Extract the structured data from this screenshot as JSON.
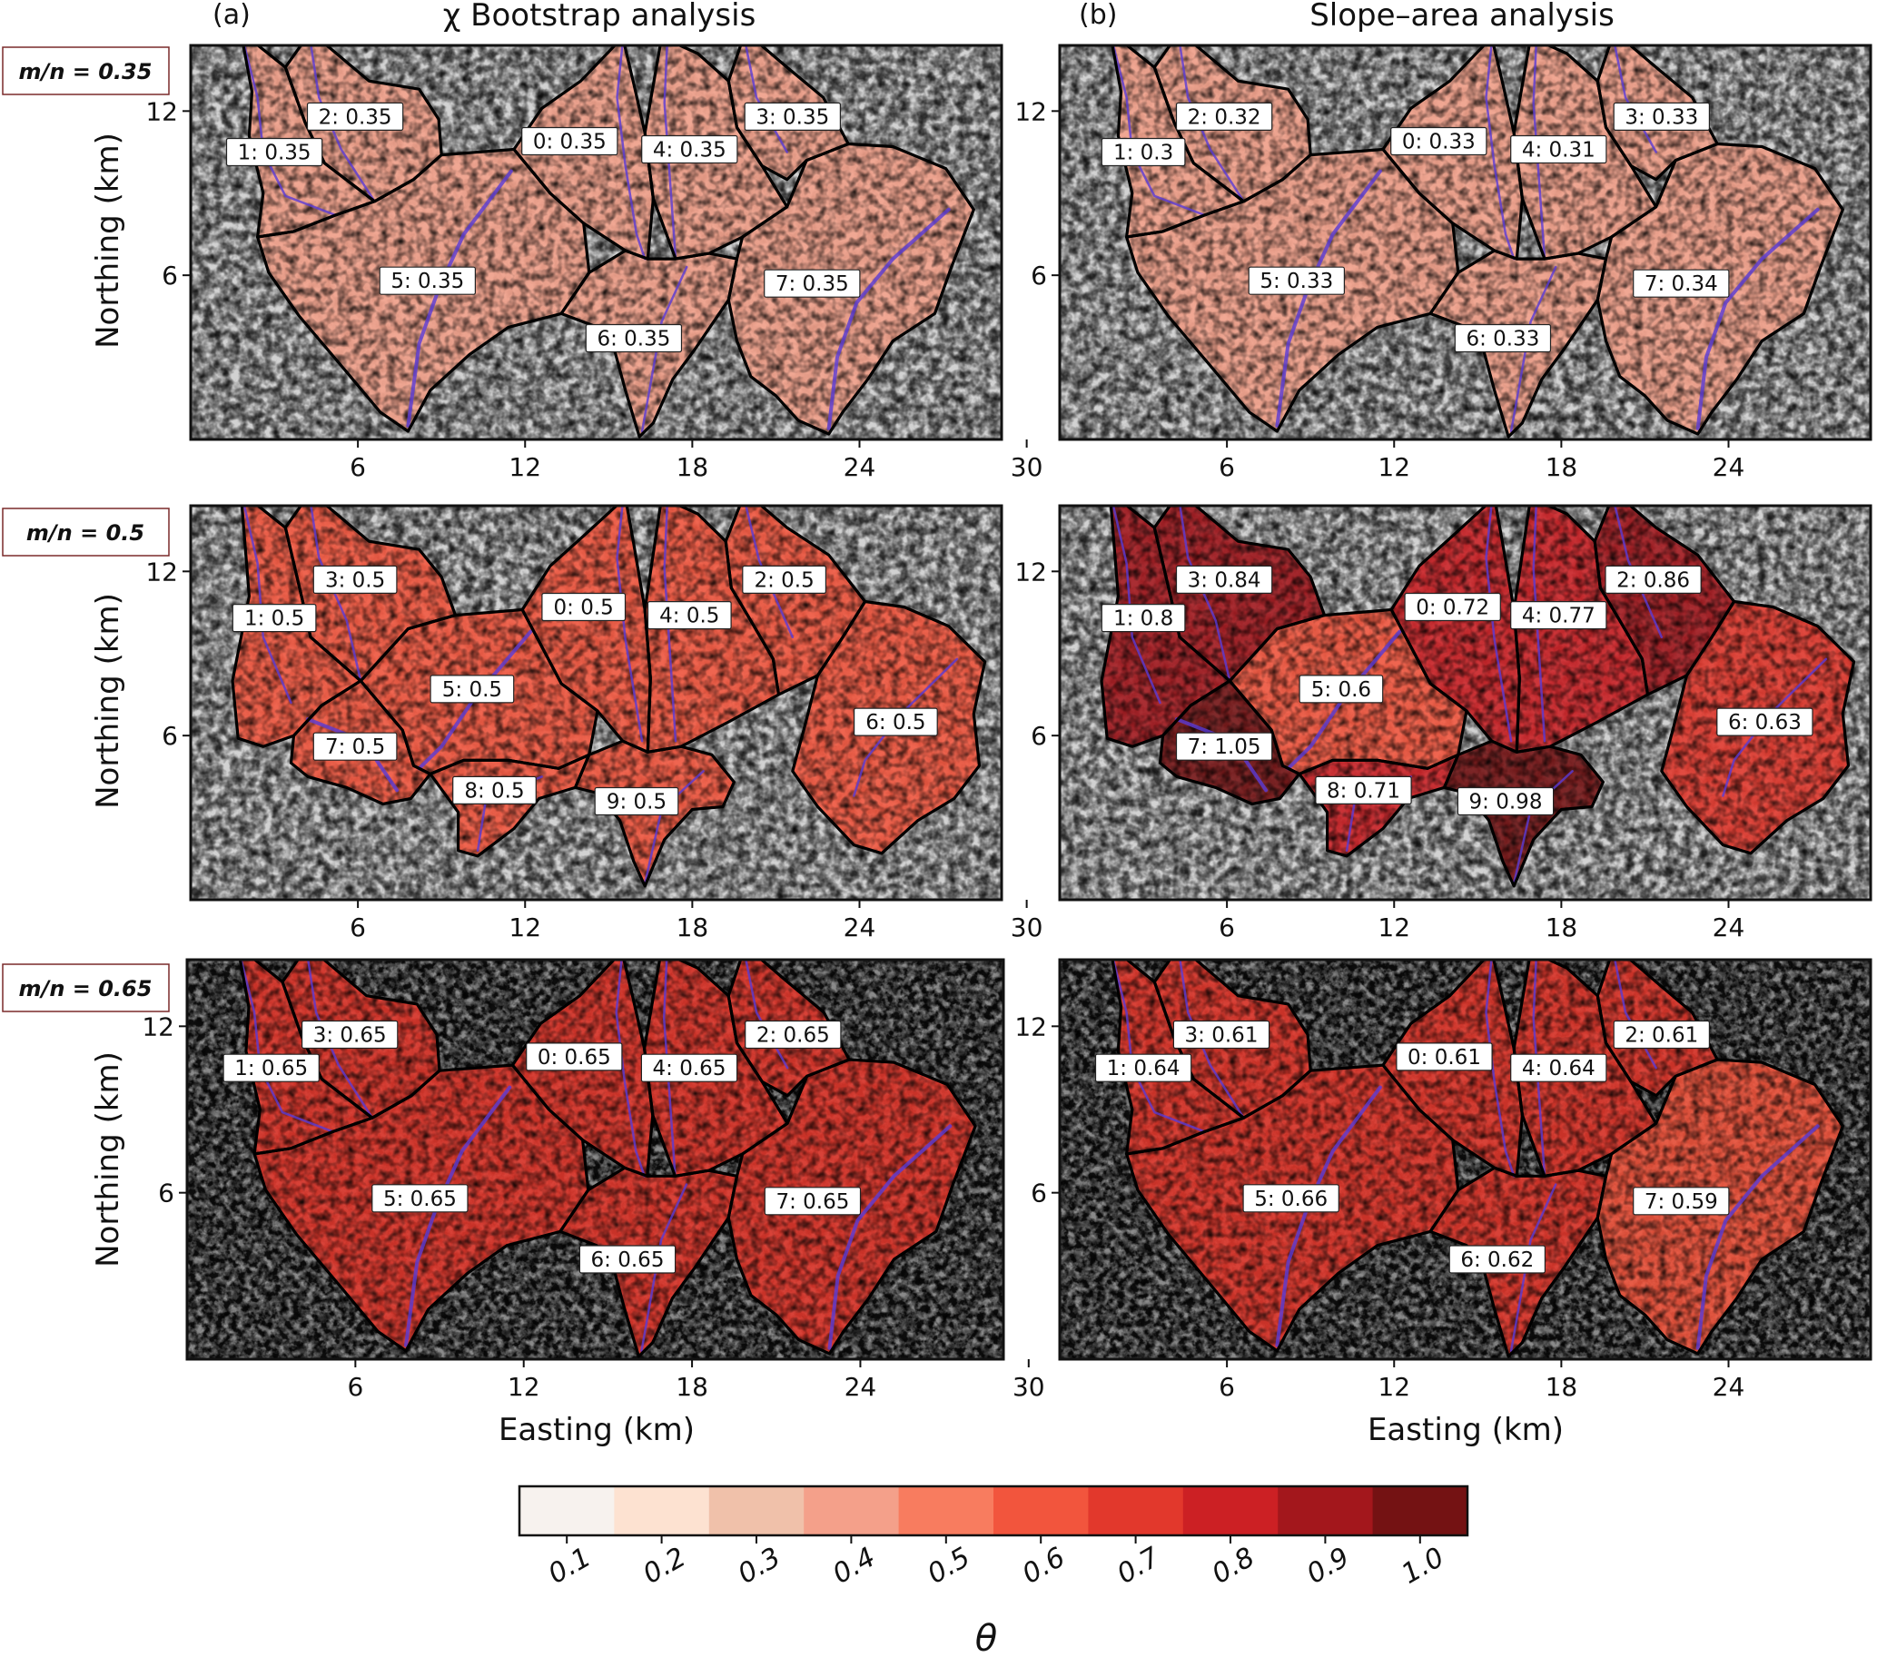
{
  "columns": [
    {
      "letter": "(a)",
      "title": "χ Bootstrap analysis"
    },
    {
      "letter": "(b)",
      "title": "Slope–area analysis"
    }
  ],
  "rows": [
    {
      "mn_label": "m/n = 0.35"
    },
    {
      "mn_label": "m/n = 0.5"
    },
    {
      "mn_label": "m/n = 0.65"
    }
  ],
  "axes": {
    "ylabel": "Northing (km)",
    "xlabel": "Easting (km)",
    "x_ticks": [
      "6",
      "12",
      "18",
      "24",
      "30"
    ],
    "y_ticks": [
      "12",
      "6"
    ],
    "x_range_km": [
      0,
      31
    ],
    "y_range_km": [
      0,
      15
    ]
  },
  "colorbar": {
    "symbol": "θ",
    "ticks": [
      "0.1",
      "0.2",
      "0.3",
      "0.4",
      "0.5",
      "0.6",
      "0.7",
      "0.8",
      "0.9",
      "1.0"
    ],
    "colors": [
      "#f7f2ee",
      "#fde2d1",
      "#f0c1aa",
      "#f4a08a",
      "#f87c5f",
      "#f2553d",
      "#e2382c",
      "#cc2024",
      "#a3171c",
      "#741213"
    ]
  },
  "panels": [
    {
      "row": 0,
      "col": 0,
      "mn": 0.35,
      "basins": [
        {
          "label": "1: 0.35",
          "value": 0.35
        },
        {
          "label": "2: 0.35",
          "value": 0.35
        },
        {
          "label": "0: 0.35",
          "value": 0.35
        },
        {
          "label": "4: 0.35",
          "value": 0.35
        },
        {
          "label": "3: 0.35",
          "value": 0.35
        },
        {
          "label": "5: 0.35",
          "value": 0.35
        },
        {
          "label": "7: 0.35",
          "value": 0.35
        },
        {
          "label": "6: 0.35",
          "value": 0.35
        }
      ]
    },
    {
      "row": 0,
      "col": 1,
      "mn": 0.35,
      "basins": [
        {
          "label": "1: 0.3",
          "value": 0.3
        },
        {
          "label": "2: 0.32",
          "value": 0.32
        },
        {
          "label": "0: 0.33",
          "value": 0.33
        },
        {
          "label": "4: 0.31",
          "value": 0.31
        },
        {
          "label": "3: 0.33",
          "value": 0.33
        },
        {
          "label": "5: 0.33",
          "value": 0.33
        },
        {
          "label": "7: 0.34",
          "value": 0.34
        },
        {
          "label": "6: 0.33",
          "value": 0.33
        }
      ]
    },
    {
      "row": 1,
      "col": 0,
      "mn": 0.5,
      "basins": [
        {
          "label": "1: 0.5",
          "value": 0.5
        },
        {
          "label": "3: 0.5",
          "value": 0.5
        },
        {
          "label": "0: 0.5",
          "value": 0.5
        },
        {
          "label": "4: 0.5",
          "value": 0.5
        },
        {
          "label": "2: 0.5",
          "value": 0.5
        },
        {
          "label": "5: 0.5",
          "value": 0.5
        },
        {
          "label": "7: 0.5",
          "value": 0.5
        },
        {
          "label": "8: 0.5",
          "value": 0.5
        },
        {
          "label": "9: 0.5",
          "value": 0.5
        },
        {
          "label": "6: 0.5",
          "value": 0.5
        }
      ]
    },
    {
      "row": 1,
      "col": 1,
      "mn": 0.5,
      "basins": [
        {
          "label": "1: 0.8",
          "value": 0.8
        },
        {
          "label": "3: 0.84",
          "value": 0.84
        },
        {
          "label": "0: 0.72",
          "value": 0.72
        },
        {
          "label": "4: 0.77",
          "value": 0.77
        },
        {
          "label": "2: 0.86",
          "value": 0.86
        },
        {
          "label": "5: 0.6",
          "value": 0.6
        },
        {
          "label": "7: 1.05",
          "value": 1.05
        },
        {
          "label": "8: 0.71",
          "value": 0.71
        },
        {
          "label": "9: 0.98",
          "value": 0.98
        },
        {
          "label": "6: 0.63",
          "value": 0.63
        }
      ]
    },
    {
      "row": 2,
      "col": 0,
      "mn": 0.65,
      "basins": [
        {
          "label": "1: 0.65",
          "value": 0.65
        },
        {
          "label": "3: 0.65",
          "value": 0.65
        },
        {
          "label": "0: 0.65",
          "value": 0.65
        },
        {
          "label": "4: 0.65",
          "value": 0.65
        },
        {
          "label": "2: 0.65",
          "value": 0.65
        },
        {
          "label": "5: 0.65",
          "value": 0.65
        },
        {
          "label": "7: 0.65",
          "value": 0.65
        },
        {
          "label": "6: 0.65",
          "value": 0.65
        }
      ]
    },
    {
      "row": 2,
      "col": 1,
      "mn": 0.65,
      "basins": [
        {
          "label": "1: 0.64",
          "value": 0.64
        },
        {
          "label": "3: 0.61",
          "value": 0.61
        },
        {
          "label": "0: 0.61",
          "value": 0.61
        },
        {
          "label": "4: 0.64",
          "value": 0.64
        },
        {
          "label": "2: 0.61",
          "value": 0.61
        },
        {
          "label": "5: 0.66",
          "value": 0.66
        },
        {
          "label": "7: 0.59",
          "value": 0.59
        },
        {
          "label": "6: 0.62",
          "value": 0.62
        }
      ]
    }
  ]
}
